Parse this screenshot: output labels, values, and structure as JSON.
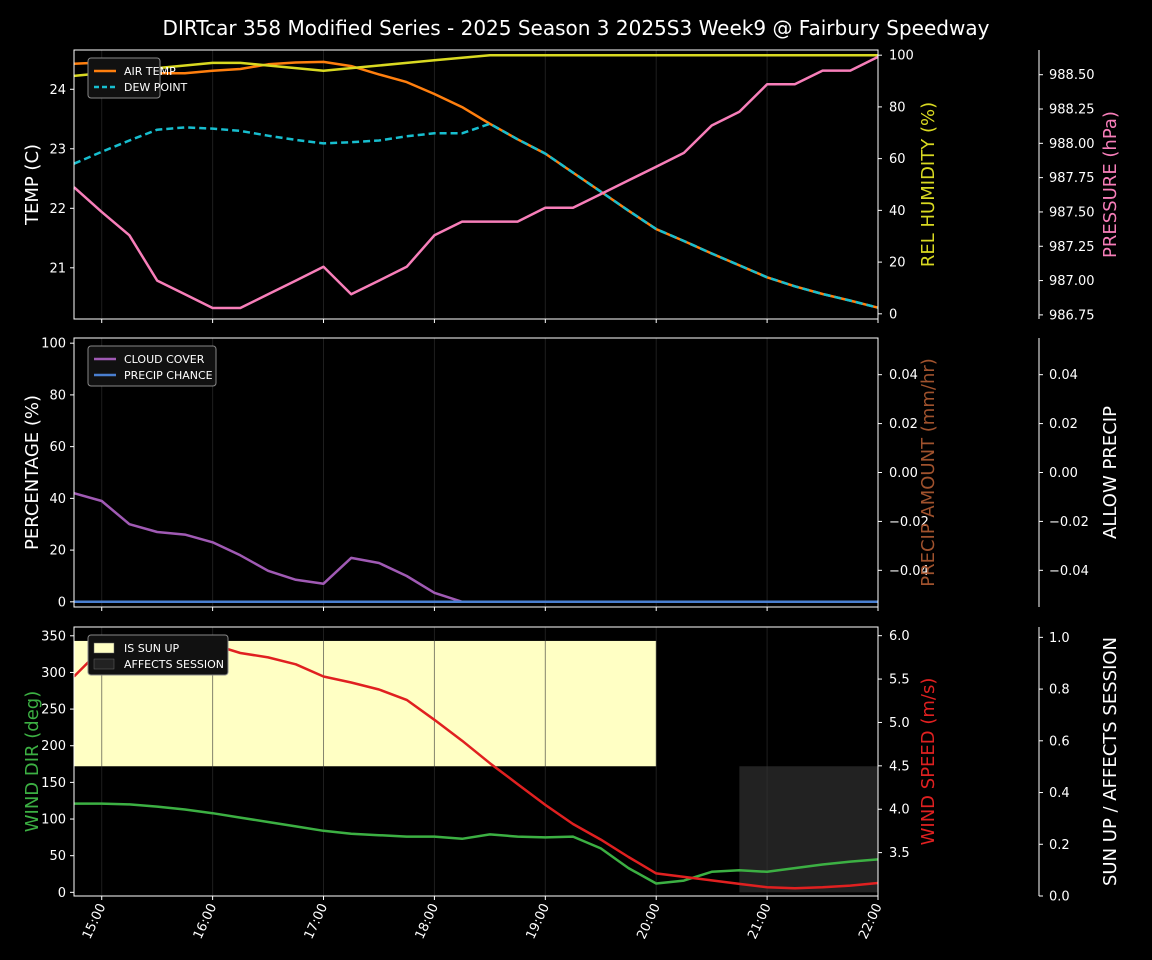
{
  "title": "DIRTcar 358 Modified Series - 2025 Season 3 2025S3 Week9 @ Fairbury Speedway",
  "chart_data": [
    {
      "type": "line",
      "panel": "top",
      "x": [
        "14:45",
        "15:00",
        "15:15",
        "15:30",
        "15:45",
        "16:00",
        "16:15",
        "16:30",
        "16:45",
        "17:00",
        "17:15",
        "17:30",
        "17:45",
        "18:00",
        "18:15",
        "18:30",
        "18:45",
        "19:00",
        "19:15",
        "19:30",
        "19:45",
        "20:00",
        "20:15",
        "20:30",
        "20:45",
        "21:00",
        "21:15",
        "21:30",
        "21:45",
        "22:00"
      ],
      "x_ticks": [
        "15:00",
        "16:00",
        "17:00",
        "18:00",
        "19:00",
        "20:00",
        "21:00",
        "22:00"
      ],
      "series": [
        {
          "name": "AIR TEMP",
          "axis": "left",
          "color": "#ff7f0e",
          "style": "solid",
          "values": [
            24.43,
            24.45,
            24.36,
            24.27,
            24.27,
            24.31,
            24.34,
            24.42,
            24.45,
            24.46,
            24.39,
            24.25,
            24.12,
            23.92,
            23.7,
            23.42,
            23.16,
            22.92,
            22.6,
            22.28,
            21.96,
            21.65,
            21.45,
            21.24,
            21.04,
            20.84,
            20.69,
            20.56,
            20.45,
            20.33
          ]
        },
        {
          "name": "DEW POINT",
          "axis": "left",
          "color": "#17becf",
          "style": "dashed",
          "values": [
            22.75,
            22.95,
            23.14,
            23.32,
            23.36,
            23.34,
            23.3,
            23.22,
            23.15,
            23.09,
            23.11,
            23.14,
            23.21,
            23.26,
            23.26,
            23.42,
            23.16,
            22.92,
            22.6,
            22.28,
            21.96,
            21.65,
            21.45,
            21.24,
            21.04,
            20.84,
            20.69,
            20.56,
            20.45,
            20.33
          ]
        },
        {
          "name": "REL HUMIDITY",
          "axis": "right1",
          "color": "#d9d921",
          "style": "solid",
          "values": [
            92,
            93,
            94,
            95,
            96,
            97,
            97,
            96,
            95,
            94,
            95,
            96,
            97,
            98,
            99,
            100,
            100,
            100,
            100,
            100,
            100,
            100,
            100,
            100,
            100,
            100,
            100,
            100,
            100,
            100
          ]
        },
        {
          "name": "PRESSURE",
          "axis": "right2",
          "color": "#f77eb9",
          "style": "solid",
          "values": [
            987.68,
            987.5,
            987.33,
            987.0,
            986.9,
            986.8,
            986.8,
            986.9,
            987.0,
            987.1,
            986.9,
            987.0,
            987.1,
            987.33,
            987.43,
            987.43,
            987.43,
            987.53,
            987.53,
            987.63,
            987.73,
            987.83,
            987.93,
            988.13,
            988.23,
            988.43,
            988.43,
            988.53,
            988.53,
            988.63
          ]
        }
      ],
      "left_axis": {
        "label": "TEMP (C)",
        "color": "#ffffff",
        "ylim": [
          20.14,
          24.66
        ],
        "ticks": [
          21,
          22,
          23,
          24
        ]
      },
      "right1_axis": {
        "label": "REL HUMIDITY (%)",
        "color": "#d9d921",
        "ylim": [
          -2,
          102
        ],
        "ticks": [
          0,
          20,
          40,
          60,
          80,
          100
        ]
      },
      "right2_axis": {
        "label": "PRESSURE (hPa)",
        "color": "#f77eb9",
        "ylim": [
          986.72,
          988.68
        ],
        "ticks": [
          986.75,
          987.0,
          987.25,
          987.5,
          987.75,
          988.0,
          988.25,
          988.5
        ],
        "tick_labels": [
          "986.75",
          "987.00",
          "987.25",
          "987.50",
          "987.75",
          "988.00",
          "988.25",
          "988.50"
        ]
      },
      "legend": {
        "placement": "top-left",
        "entries": [
          "AIR TEMP",
          "DEW POINT"
        ]
      }
    },
    {
      "type": "line",
      "panel": "middle",
      "series": [
        {
          "name": "CLOUD COVER",
          "axis": "left",
          "color": "#a05ab4",
          "style": "solid",
          "values": [
            42,
            39,
            30,
            27,
            26,
            23,
            18,
            12,
            8.5,
            7,
            17,
            15,
            10,
            3.5,
            0,
            0,
            0,
            0,
            0,
            0,
            0,
            0,
            0,
            0,
            0,
            0,
            0,
            0,
            0,
            0
          ]
        },
        {
          "name": "PRECIP CHANCE",
          "axis": "left",
          "color": "#4a7fd0",
          "style": "solid",
          "values": [
            0,
            0,
            0,
            0,
            0,
            0,
            0,
            0,
            0,
            0,
            0,
            0,
            0,
            0,
            0,
            0,
            0,
            0,
            0,
            0,
            0,
            0,
            0,
            0,
            0,
            0,
            0,
            0,
            0,
            0
          ]
        }
      ],
      "left_axis": {
        "label": "PERCENTAGE (%)",
        "color": "#ffffff",
        "ylim": [
          -2,
          102
        ],
        "ticks": [
          0,
          20,
          40,
          60,
          80,
          100
        ]
      },
      "right1_axis": {
        "label": "PRECIP AMOUNT (mm/hr)",
        "color": "#a0522d",
        "ylim": [
          -0.055,
          0.055
        ],
        "ticks": [
          -0.04,
          -0.02,
          0.0,
          0.02,
          0.04
        ],
        "tick_labels": [
          "−0.04",
          "−0.02",
          "0.00",
          "0.02",
          "0.04"
        ]
      },
      "right2_axis": {
        "label": "ALLOW PRECIP",
        "color": "#ffffff",
        "ylim": [
          -0.055,
          0.055
        ],
        "ticks": [
          -0.04,
          -0.02,
          0.0,
          0.02,
          0.04
        ],
        "tick_labels": [
          "−0.04",
          "−0.02",
          "0.00",
          "0.02",
          "0.04"
        ]
      },
      "legend": {
        "placement": "top-left",
        "entries": [
          "CLOUD COVER",
          "PRECIP CHANCE"
        ]
      }
    },
    {
      "type": "line",
      "panel": "bottom",
      "series": [
        {
          "name": "WIND DIR",
          "axis": "left",
          "color": "#3cb043",
          "style": "solid",
          "values": [
            121,
            121,
            120,
            117,
            113,
            108,
            102,
            96,
            90,
            84,
            80,
            78,
            76,
            76,
            73,
            79,
            76,
            75,
            76,
            60,
            33,
            12,
            16,
            28,
            30,
            28,
            33,
            38,
            42,
            45
          ]
        },
        {
          "name": "WIND SPEED",
          "axis": "right1",
          "color": "#e02020",
          "style": "solid",
          "values": [
            5.53,
            5.85,
            5.95,
            6.0,
            5.96,
            5.9,
            5.8,
            5.75,
            5.67,
            5.53,
            5.46,
            5.38,
            5.26,
            5.03,
            4.79,
            4.53,
            4.29,
            4.05,
            3.83,
            3.65,
            3.45,
            3.26,
            3.22,
            3.18,
            3.14,
            3.1,
            3.09,
            3.1,
            3.12,
            3.15
          ]
        },
        {
          "name": "IS SUN UP",
          "axis": "right2",
          "color": "#ffffc4",
          "type": "fill",
          "from": "14:45",
          "to": "20:00",
          "level": 1.0,
          "band_bottom_left_axis": 172,
          "band_top_left_axis": 343
        },
        {
          "name": "AFFECTS SESSION",
          "axis": "right2",
          "color": "#222222",
          "type": "fill",
          "from": "20:45",
          "to": "22:00",
          "level": 1.0,
          "band_bottom_left_axis": 0,
          "band_top_left_axis": 172
        }
      ],
      "left_axis": {
        "label": "WIND DIR (deg)",
        "color": "#3cb043",
        "ylim": [
          -5,
          362
        ],
        "ticks": [
          0,
          50,
          100,
          150,
          200,
          250,
          300,
          350
        ]
      },
      "right1_axis": {
        "label": "WIND SPEED (m/s)",
        "color": "#e02020",
        "ylim": [
          3.0,
          6.1
        ],
        "ticks": [
          3.5,
          4.0,
          4.5,
          5.0,
          5.5,
          6.0
        ],
        "tick_labels": [
          "3.5",
          "4.0",
          "4.5",
          "5.0",
          "5.5",
          "6.0"
        ]
      },
      "right2_axis": {
        "label": "SUN UP / AFFECTS SESSION",
        "color": "#ffffff",
        "ylim": [
          0,
          1.04
        ],
        "ticks": [
          0,
          0.2,
          0.4,
          0.6,
          0.8,
          1.0
        ],
        "tick_labels": [
          "0.0",
          "0.2",
          "0.4",
          "0.6",
          "0.8",
          "1.0"
        ]
      },
      "legend": {
        "placement": "top-left",
        "entries": [
          "IS SUN UP",
          "AFFECTS SESSION"
        ]
      }
    }
  ]
}
